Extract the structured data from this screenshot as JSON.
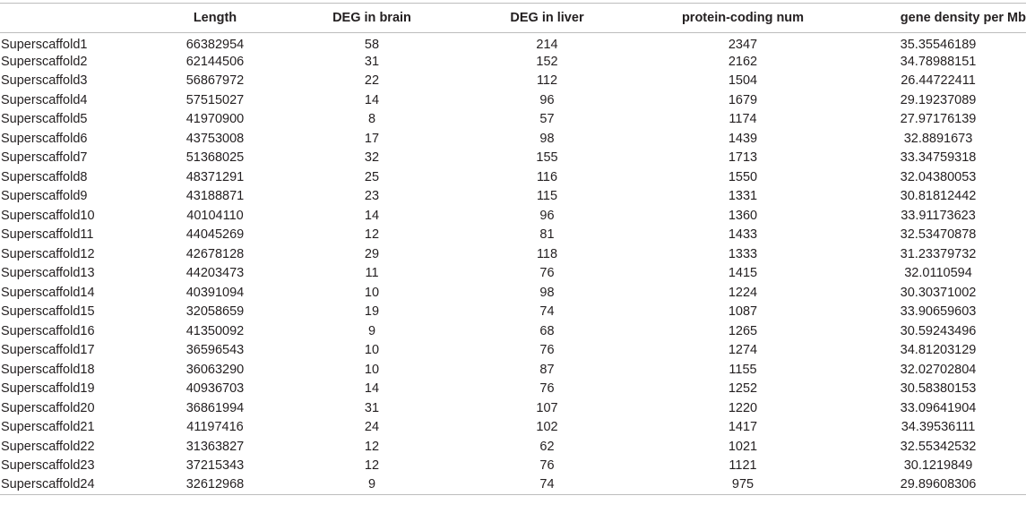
{
  "table": {
    "headers": [
      "",
      "Length",
      "DEG in brain",
      "DEG in liver",
      "protein-coding num",
      "gene density per Mb"
    ],
    "rows": [
      [
        "Superscaffold1",
        "66382954",
        "58",
        "214",
        "2347",
        "35.35546189"
      ],
      [
        "Superscaffold2",
        "62144506",
        "31",
        "152",
        "2162",
        "34.78988151"
      ],
      [
        "Superscaffold3",
        "56867972",
        "22",
        "112",
        "1504",
        "26.44722411"
      ],
      [
        "Superscaffold4",
        "57515027",
        "14",
        "96",
        "1679",
        "29.19237089"
      ],
      [
        "Superscaffold5",
        "41970900",
        "8",
        "57",
        "1174",
        "27.97176139"
      ],
      [
        "Superscaffold6",
        "43753008",
        "17",
        "98",
        "1439",
        "32.8891673"
      ],
      [
        "Superscaffold7",
        "51368025",
        "32",
        "155",
        "1713",
        "33.34759318"
      ],
      [
        "Superscaffold8",
        "48371291",
        "25",
        "116",
        "1550",
        "32.04380053"
      ],
      [
        "Superscaffold9",
        "43188871",
        "23",
        "115",
        "1331",
        "30.81812442"
      ],
      [
        "Superscaffold10",
        "40104110",
        "14",
        "96",
        "1360",
        "33.91173623"
      ],
      [
        "Superscaffold11",
        "44045269",
        "12",
        "81",
        "1433",
        "32.53470878"
      ],
      [
        "Superscaffold12",
        "42678128",
        "29",
        "118",
        "1333",
        "31.23379732"
      ],
      [
        "Superscaffold13",
        "44203473",
        "11",
        "76",
        "1415",
        "32.0110594"
      ],
      [
        "Superscaffold14",
        "40391094",
        "10",
        "98",
        "1224",
        "30.30371002"
      ],
      [
        "Superscaffold15",
        "32058659",
        "19",
        "74",
        "1087",
        "33.90659603"
      ],
      [
        "Superscaffold16",
        "41350092",
        "9",
        "68",
        "1265",
        "30.59243496"
      ],
      [
        "Superscaffold17",
        "36596543",
        "10",
        "76",
        "1274",
        "34.81203129"
      ],
      [
        "Superscaffold18",
        "36063290",
        "10",
        "87",
        "1155",
        "32.02702804"
      ],
      [
        "Superscaffold19",
        "40936703",
        "14",
        "76",
        "1252",
        "30.58380153"
      ],
      [
        "Superscaffold20",
        "36861994",
        "31",
        "107",
        "1220",
        "33.09641904"
      ],
      [
        "Superscaffold21",
        "41197416",
        "24",
        "102",
        "1417",
        "34.39536111"
      ],
      [
        "Superscaffold22",
        "31363827",
        "12",
        "62",
        "1021",
        "32.55342532"
      ],
      [
        "Superscaffold23",
        "37215343",
        "12",
        "76",
        "1121",
        "30.1219849"
      ],
      [
        "Superscaffold24",
        "32612968",
        "9",
        "74",
        "975",
        "29.89608306"
      ]
    ]
  }
}
